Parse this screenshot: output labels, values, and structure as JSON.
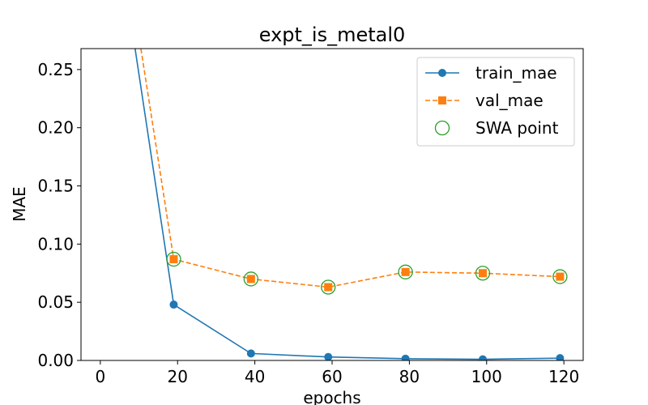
{
  "chart_data": {
    "type": "line",
    "title": "expt_is_metal0",
    "xlabel": "epochs",
    "ylabel": "MAE",
    "xlim": [
      -5,
      125
    ],
    "ylim": [
      0,
      0.268
    ],
    "xticks": [
      0,
      20,
      40,
      60,
      80,
      100,
      120
    ],
    "yticks": [
      0.0,
      0.05,
      0.1,
      0.15,
      0.2,
      0.25
    ],
    "ytick_labels": [
      "0.00",
      "0.05",
      "0.10",
      "0.15",
      "0.20",
      "0.25"
    ],
    "grid": false,
    "legend_position": "top-right",
    "series": [
      {
        "name": "train_mae",
        "color": "#1f77b4",
        "line_style": "solid",
        "marker": "circle",
        "x": [
          9,
          19,
          39,
          59,
          79,
          99,
          119
        ],
        "y": [
          0.268,
          0.048,
          0.006,
          0.003,
          0.0015,
          0.001,
          0.002
        ]
      },
      {
        "name": "val_mae",
        "color": "#ff7f0e",
        "line_style": "dashed",
        "marker": "square",
        "x": [
          10.5,
          19,
          39,
          59,
          79,
          99,
          119
        ],
        "y": [
          0.268,
          0.087,
          0.07,
          0.063,
          0.076,
          0.075,
          0.072
        ]
      },
      {
        "name": "SWA point",
        "color": "#2ca02c",
        "line_style": "none",
        "marker": "open-circle",
        "x": [
          19,
          39,
          59,
          79,
          99,
          119
        ],
        "y": [
          0.087,
          0.07,
          0.063,
          0.076,
          0.075,
          0.072
        ]
      }
    ]
  }
}
